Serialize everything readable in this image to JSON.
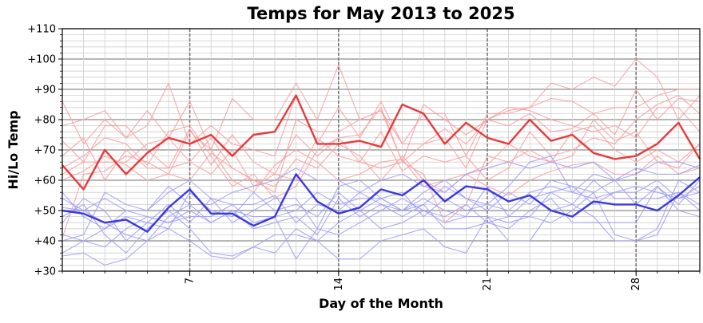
{
  "chart_data": {
    "type": "line",
    "title": "Temps for May 2013 to 2025",
    "xlabel": "Day of the Month",
    "ylabel": "Hi/Lo Temp",
    "xlim": [
      1,
      31
    ],
    "ylim": [
      30,
      110
    ],
    "x_ticks": [
      7,
      14,
      21,
      28
    ],
    "x_tick_labels": [
      "7",
      "14",
      "21",
      "28"
    ],
    "y_ticks": [
      30,
      40,
      50,
      60,
      70,
      80,
      90,
      100,
      110
    ],
    "y_tick_labels": [
      "+30",
      "+40",
      "+50",
      "+60",
      "+70",
      "+80",
      "+90",
      "+100",
      "+110"
    ],
    "grid": true,
    "x": [
      1,
      2,
      3,
      4,
      5,
      6,
      7,
      8,
      9,
      10,
      11,
      12,
      13,
      14,
      15,
      16,
      17,
      18,
      19,
      20,
      21,
      22,
      23,
      24,
      25,
      26,
      27,
      28,
      29,
      30,
      31
    ],
    "series": [
      {
        "role": "highlight-high",
        "color": "#e83a3a",
        "values": [
          65,
          57,
          70,
          62,
          69,
          74,
          72,
          75,
          68,
          75,
          76,
          88,
          72,
          72,
          73,
          71,
          85,
          82,
          72,
          79,
          74,
          72,
          80,
          73,
          75,
          69,
          67,
          68,
          72,
          79,
          67
        ]
      },
      {
        "role": "highlight-low",
        "color": "#3a3ae0",
        "values": [
          50,
          49,
          46,
          47,
          43,
          51,
          57,
          49,
          49,
          45,
          48,
          62,
          53,
          49,
          51,
          57,
          55,
          60,
          53,
          58,
          57,
          53,
          55,
          50,
          48,
          53,
          52,
          52,
          50,
          55,
          61
        ]
      },
      {
        "role": "background-high",
        "color": "#f7a0a0",
        "values": [
          86,
          72,
          80,
          74,
          83,
          74,
          86,
          70,
          87,
          80,
          80,
          92,
          80,
          98,
          80,
          83,
          66,
          85,
          80,
          75,
          80,
          83,
          84,
          92,
          90,
          94,
          91,
          100,
          94,
          80,
          88
        ]
      },
      {
        "role": "background-high",
        "color": "#f7a0a0",
        "values": [
          78,
          80,
          83,
          74,
          78,
          92,
          72,
          78,
          72,
          70,
          68,
          88,
          72,
          84,
          74,
          86,
          72,
          82,
          82,
          68,
          82,
          82,
          84,
          87,
          86,
          82,
          84,
          84,
          88,
          90,
          90
        ]
      },
      {
        "role": "background-high",
        "color": "#f7a0a0",
        "values": [
          73,
          66,
          78,
          78,
          70,
          64,
          77,
          65,
          75,
          66,
          62,
          75,
          68,
          74,
          75,
          84,
          66,
          72,
          77,
          72,
          80,
          78,
          82,
          76,
          77,
          82,
          75,
          90,
          80,
          87,
          86
        ]
      },
      {
        "role": "background-high",
        "color": "#f7a0a0",
        "values": [
          62,
          66,
          66,
          66,
          72,
          74,
          66,
          74,
          64,
          60,
          56,
          80,
          76,
          76,
          80,
          83,
          72,
          72,
          74,
          64,
          80,
          84,
          83,
          80,
          78,
          76,
          78,
          74,
          84,
          84,
          76
        ]
      },
      {
        "role": "background-high",
        "color": "#f7a0a0",
        "values": [
          68,
          74,
          60,
          70,
          64,
          64,
          66,
          62,
          70,
          58,
          62,
          60,
          74,
          68,
          66,
          76,
          63,
          68,
          66,
          68,
          60,
          64,
          76,
          68,
          70,
          74,
          72,
          80,
          85,
          88,
          82
        ]
      },
      {
        "role": "background-high",
        "color": "#f7a0a0",
        "values": [
          60,
          63,
          68,
          65,
          60,
          62,
          76,
          70,
          60,
          56,
          65,
          70,
          66,
          60,
          62,
          66,
          67,
          58,
          60,
          62,
          65,
          72,
          68,
          66,
          76,
          78,
          70,
          66,
          70,
          66,
          72
        ]
      },
      {
        "role": "background-high",
        "color": "#f7a0a0",
        "values": [
          41,
          62,
          63,
          68,
          66,
          62,
          60,
          69,
          64,
          60,
          58,
          67,
          64,
          72,
          68,
          60,
          68,
          60,
          56,
          62,
          58,
          55,
          60,
          63,
          65,
          66,
          62,
          62,
          68,
          62,
          64
        ]
      },
      {
        "role": "background-high",
        "color": "#f7a0a0",
        "values": [
          64,
          68,
          74,
          72,
          65,
          76,
          78,
          68,
          58,
          62,
          54,
          58,
          70,
          74,
          66,
          64,
          66,
          62,
          46,
          52,
          68,
          66,
          70,
          66,
          68,
          80,
          73,
          76,
          66,
          64,
          72
        ]
      },
      {
        "role": "background-low",
        "color": "#a0a0f4",
        "values": [
          40,
          42,
          56,
          52,
          50,
          58,
          52,
          52,
          56,
          58,
          60,
          64,
          60,
          60,
          56,
          60,
          62,
          58,
          56,
          62,
          64,
          66,
          64,
          66,
          64,
          66,
          60,
          64,
          62,
          62,
          65
        ]
      },
      {
        "role": "background-low",
        "color": "#a0a0f4",
        "values": [
          36,
          40,
          44,
          50,
          50,
          56,
          60,
          54,
          46,
          50,
          54,
          54,
          44,
          58,
          60,
          54,
          50,
          52,
          58,
          54,
          52,
          58,
          66,
          68,
          56,
          62,
          60,
          62,
          66,
          66,
          64
        ]
      },
      {
        "role": "background-low",
        "color": "#a0a0f4",
        "values": [
          42,
          40,
          38,
          44,
          48,
          46,
          50,
          46,
          50,
          48,
          48,
          34,
          44,
          42,
          46,
          50,
          54,
          50,
          48,
          52,
          46,
          48,
          54,
          56,
          58,
          52,
          56,
          58,
          56,
          54,
          58
        ]
      },
      {
        "role": "background-low",
        "color": "#a0a0f4",
        "values": [
          35,
          36,
          32,
          34,
          40,
          44,
          40,
          35,
          34,
          38,
          36,
          44,
          40,
          34,
          34,
          40,
          42,
          44,
          38,
          36,
          48,
          40,
          40,
          50,
          52,
          48,
          40,
          40,
          42,
          56,
          52
        ]
      },
      {
        "role": "background-low",
        "color": "#a0a0f4",
        "values": [
          48,
          52,
          42,
          36,
          44,
          50,
          44,
          36,
          35,
          38,
          42,
          42,
          40,
          46,
          50,
          44,
          46,
          50,
          46,
          48,
          48,
          46,
          48,
          46,
          50,
          56,
          42,
          40,
          44,
          60,
          56
        ]
      },
      {
        "role": "background-low",
        "color": "#a0a0f4",
        "values": [
          54,
          50,
          46,
          42,
          40,
          48,
          52,
          46,
          50,
          44,
          46,
          48,
          42,
          54,
          48,
          52,
          48,
          52,
          44,
          44,
          46,
          44,
          50,
          54,
          46,
          46,
          46,
          46,
          58,
          50,
          48
        ]
      },
      {
        "role": "background-low",
        "color": "#a0a0f4",
        "values": [
          56,
          48,
          44,
          48,
          46,
          44,
          56,
          50,
          48,
          56,
          50,
          52,
          48,
          56,
          50,
          54,
          50,
          54,
          50,
          48,
          58,
          48,
          48,
          56,
          52,
          60,
          54,
          54,
          54,
          56,
          50
        ]
      },
      {
        "role": "background-low",
        "color": "#a0a0f4",
        "values": [
          46,
          54,
          50,
          40,
          46,
          52,
          46,
          54,
          52,
          52,
          55,
          46,
          52,
          50,
          56,
          52,
          50,
          56,
          60,
          54,
          50,
          56,
          52,
          60,
          58,
          56,
          60,
          52,
          58,
          52,
          60
        ]
      },
      {
        "role": "background-low",
        "color": "#a0a0f4",
        "values": [
          51,
          50,
          54,
          50,
          48,
          46,
          48,
          48,
          52,
          46,
          48,
          50,
          56,
          52,
          54,
          54,
          56,
          48,
          54,
          50,
          52,
          50,
          56,
          58,
          56,
          54,
          56,
          56,
          60,
          54,
          56
        ]
      }
    ]
  }
}
